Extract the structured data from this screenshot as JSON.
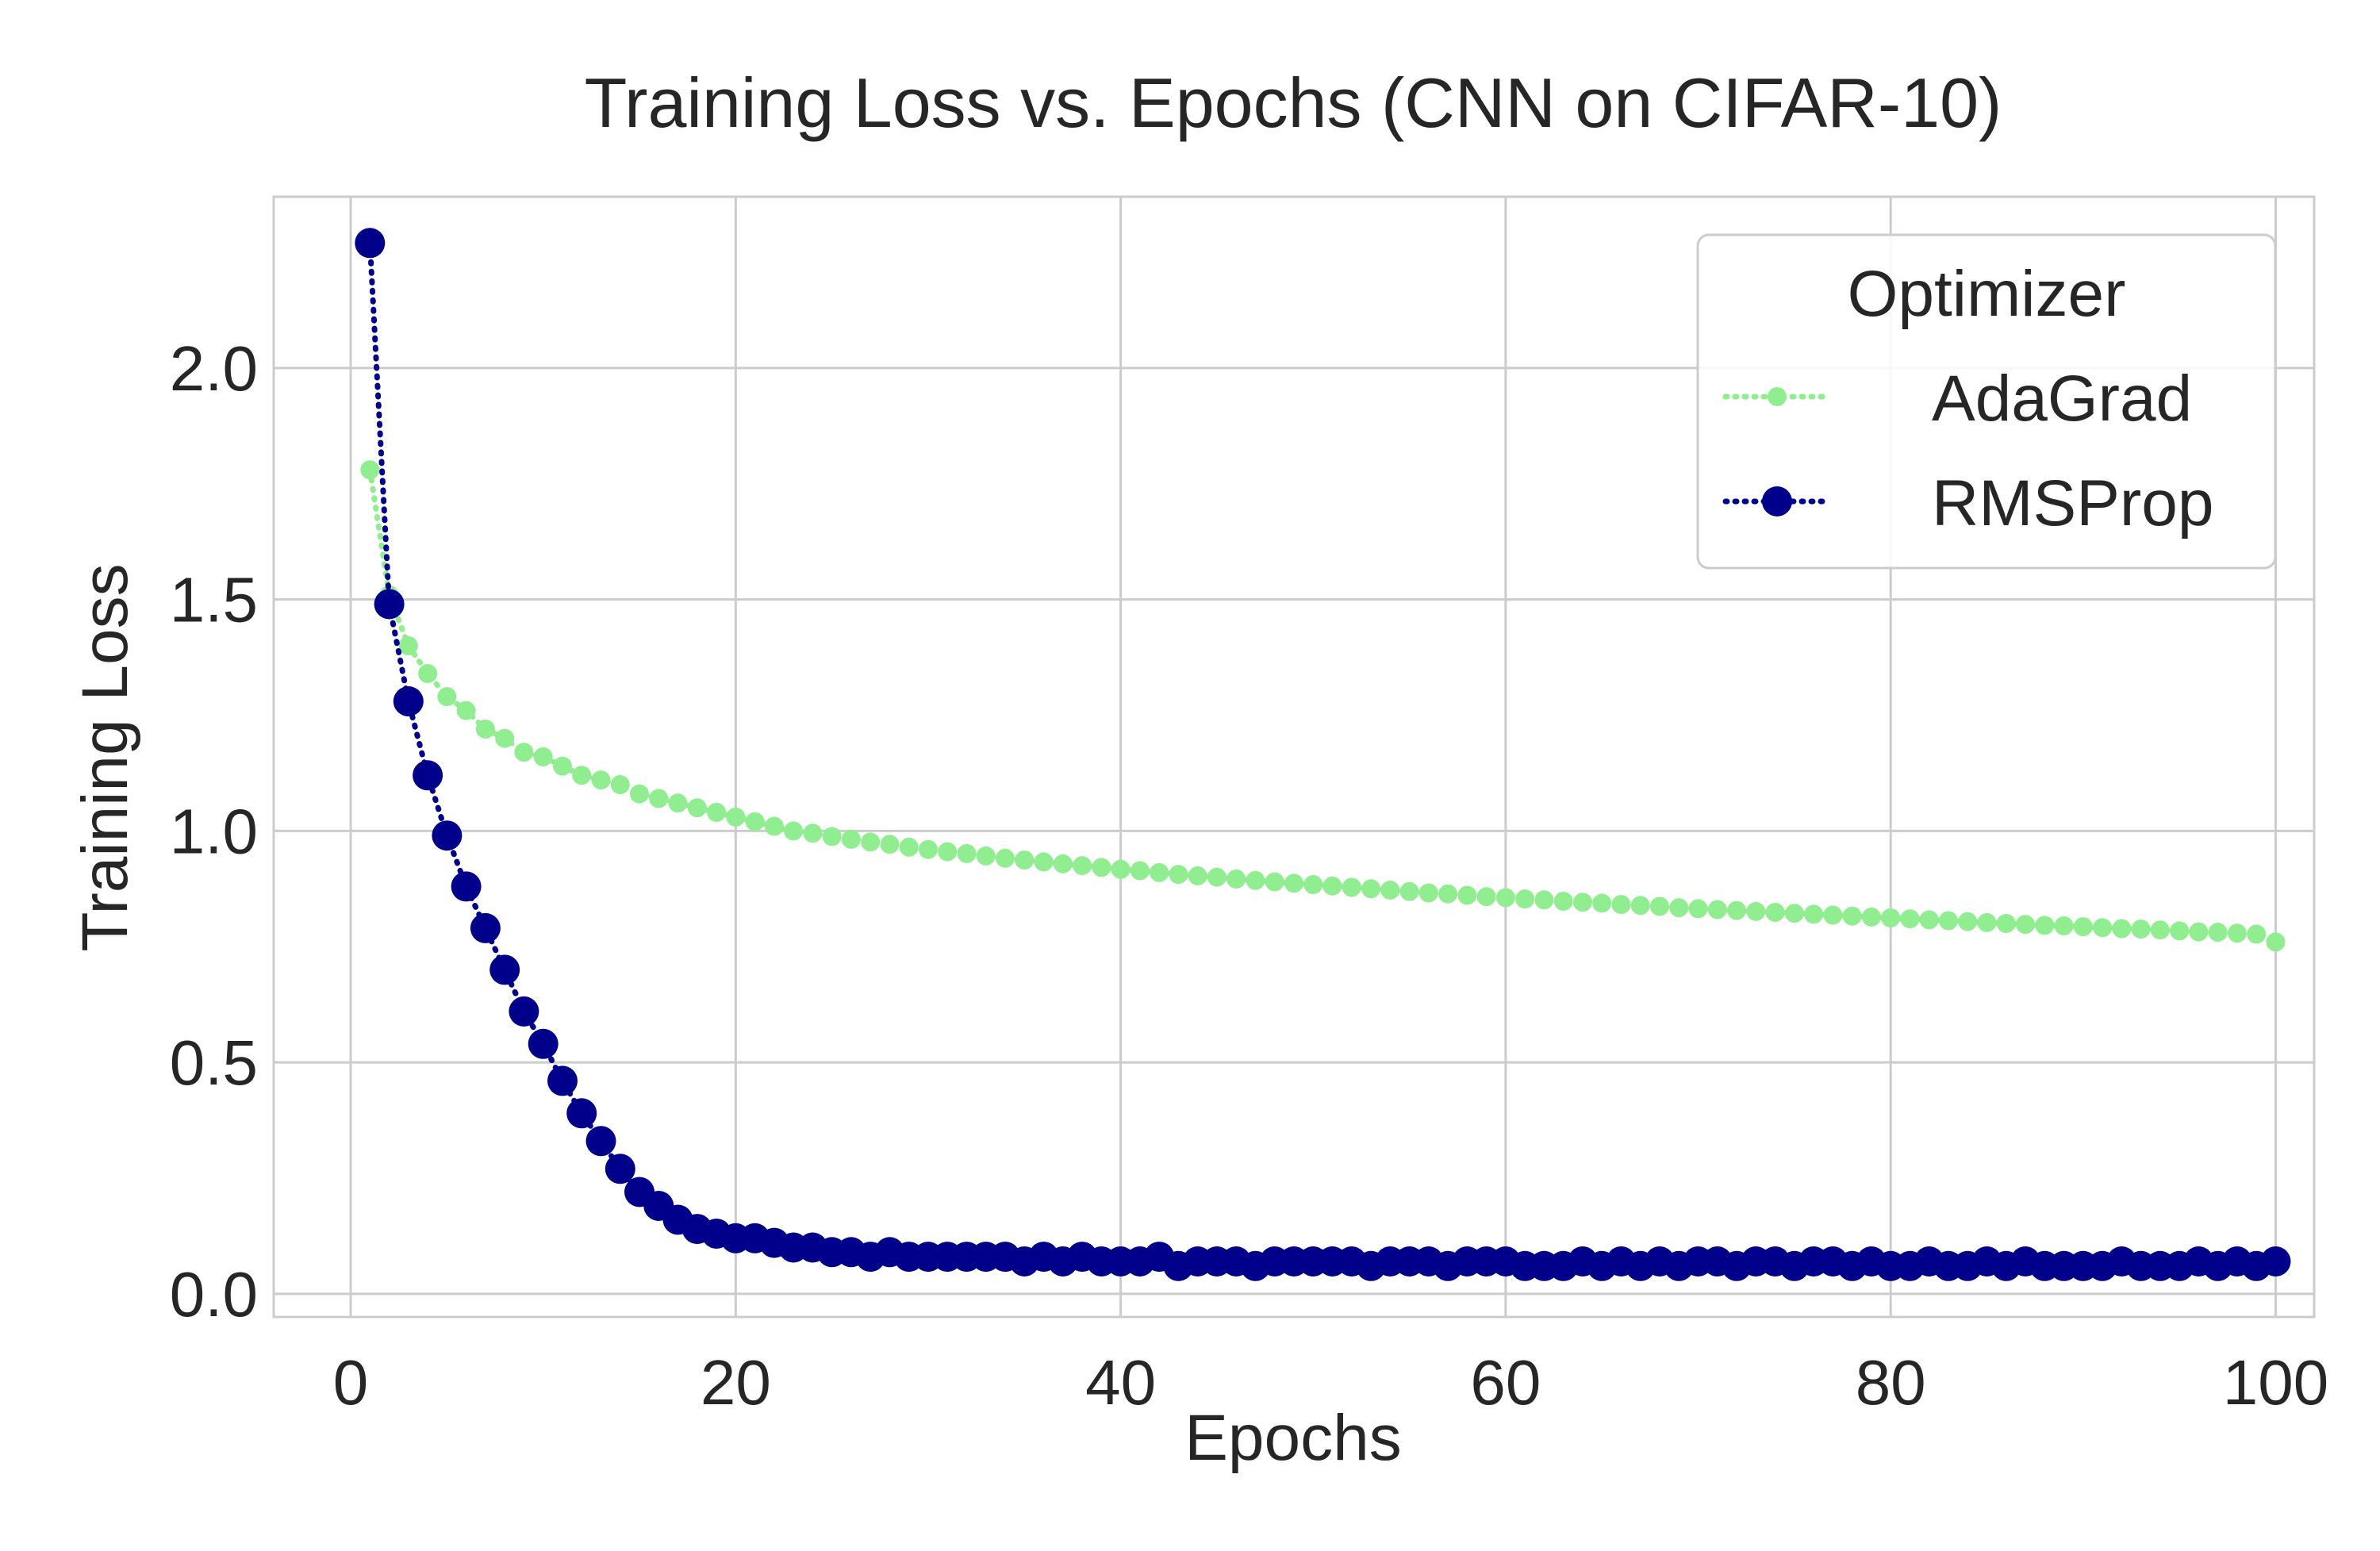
{
  "chart_data": {
    "type": "line",
    "title": "Training Loss vs. Epochs (CNN on CIFAR-10)",
    "xlabel": "Epochs",
    "ylabel": "Training Loss",
    "xlim": [
      -4,
      102
    ],
    "ylim": [
      -0.05,
      2.37
    ],
    "xticks": [
      0,
      20,
      40,
      60,
      80,
      100
    ],
    "xtick_labels": [
      "0",
      "20",
      "40",
      "60",
      "80",
      "100"
    ],
    "yticks": [
      0.0,
      0.5,
      1.0,
      1.5,
      2.0
    ],
    "ytick_labels": [
      "0.0",
      "0.5",
      "1.0",
      "1.5",
      "2.0"
    ],
    "grid": true,
    "legend": {
      "title": "Optimizer",
      "position": "top-right"
    },
    "x": [
      1,
      2,
      3,
      4,
      5,
      6,
      7,
      8,
      9,
      10,
      11,
      12,
      13,
      14,
      15,
      16,
      17,
      18,
      19,
      20,
      21,
      22,
      23,
      24,
      25,
      26,
      27,
      28,
      29,
      30,
      31,
      32,
      33,
      34,
      35,
      36,
      37,
      38,
      39,
      40,
      41,
      42,
      43,
      44,
      45,
      46,
      47,
      48,
      49,
      50,
      51,
      52,
      53,
      54,
      55,
      56,
      57,
      58,
      59,
      60,
      61,
      62,
      63,
      64,
      65,
      66,
      67,
      68,
      69,
      70,
      71,
      72,
      73,
      74,
      75,
      76,
      77,
      78,
      79,
      80,
      81,
      82,
      83,
      84,
      85,
      86,
      87,
      88,
      89,
      90,
      91,
      92,
      93,
      94,
      95,
      96,
      97,
      98,
      99,
      100
    ],
    "series": [
      {
        "name": "AdaGrad",
        "color": "#90ee90",
        "linestyle": "dotted",
        "marker": "circle-small",
        "values": [
          1.78,
          1.51,
          1.4,
          1.34,
          1.29,
          1.26,
          1.22,
          1.2,
          1.17,
          1.16,
          1.14,
          1.12,
          1.11,
          1.1,
          1.08,
          1.07,
          1.06,
          1.05,
          1.04,
          1.03,
          1.02,
          1.01,
          1.0,
          0.995,
          0.988,
          0.982,
          0.976,
          0.971,
          0.965,
          0.96,
          0.955,
          0.951,
          0.946,
          0.941,
          0.937,
          0.933,
          0.929,
          0.925,
          0.921,
          0.917,
          0.914,
          0.91,
          0.906,
          0.903,
          0.9,
          0.896,
          0.893,
          0.89,
          0.887,
          0.884,
          0.881,
          0.878,
          0.875,
          0.872,
          0.869,
          0.866,
          0.864,
          0.861,
          0.858,
          0.856,
          0.853,
          0.851,
          0.848,
          0.846,
          0.844,
          0.841,
          0.839,
          0.837,
          0.834,
          0.832,
          0.83,
          0.828,
          0.826,
          0.824,
          0.822,
          0.82,
          0.818,
          0.816,
          0.814,
          0.812,
          0.81,
          0.808,
          0.806,
          0.804,
          0.802,
          0.8,
          0.798,
          0.796,
          0.795,
          0.793,
          0.791,
          0.789,
          0.788,
          0.786,
          0.784,
          0.782,
          0.781,
          0.779,
          0.777,
          0.76
        ]
      },
      {
        "name": "RMSProp",
        "color": "#00008b",
        "linestyle": "dotted",
        "marker": "circle",
        "values": [
          2.27,
          1.49,
          1.28,
          1.12,
          0.99,
          0.88,
          0.79,
          0.7,
          0.61,
          0.54,
          0.46,
          0.39,
          0.33,
          0.27,
          0.22,
          0.19,
          0.16,
          0.14,
          0.13,
          0.12,
          0.12,
          0.11,
          0.1,
          0.1,
          0.09,
          0.09,
          0.08,
          0.09,
          0.08,
          0.08,
          0.08,
          0.08,
          0.08,
          0.08,
          0.07,
          0.08,
          0.07,
          0.08,
          0.07,
          0.07,
          0.07,
          0.08,
          0.06,
          0.07,
          0.07,
          0.07,
          0.06,
          0.07,
          0.07,
          0.07,
          0.07,
          0.07,
          0.06,
          0.07,
          0.07,
          0.07,
          0.06,
          0.07,
          0.07,
          0.07,
          0.06,
          0.06,
          0.06,
          0.07,
          0.06,
          0.07,
          0.06,
          0.07,
          0.06,
          0.07,
          0.07,
          0.06,
          0.07,
          0.07,
          0.06,
          0.07,
          0.07,
          0.06,
          0.07,
          0.06,
          0.06,
          0.07,
          0.06,
          0.06,
          0.07,
          0.06,
          0.07,
          0.06,
          0.06,
          0.06,
          0.06,
          0.07,
          0.06,
          0.06,
          0.06,
          0.07,
          0.06,
          0.07,
          0.06,
          0.07
        ]
      }
    ]
  }
}
